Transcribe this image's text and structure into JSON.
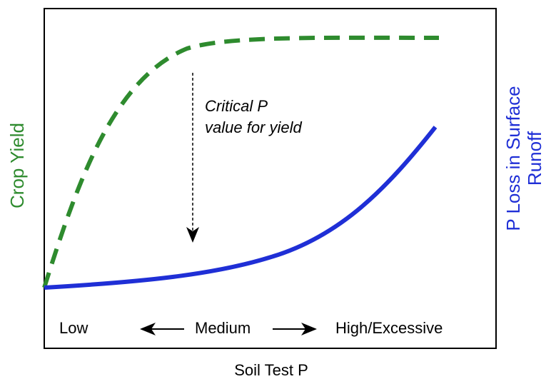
{
  "diagram": {
    "left_axis_label": "Crop Yield",
    "right_axis_label": [
      "P Loss in Surface",
      "Runoff"
    ],
    "x_axis_label": "Soil Test P",
    "annotation": [
      "Critical P",
      "value for yield"
    ],
    "levels": [
      "Low",
      "Medium",
      "High/Excessive"
    ]
  }
}
